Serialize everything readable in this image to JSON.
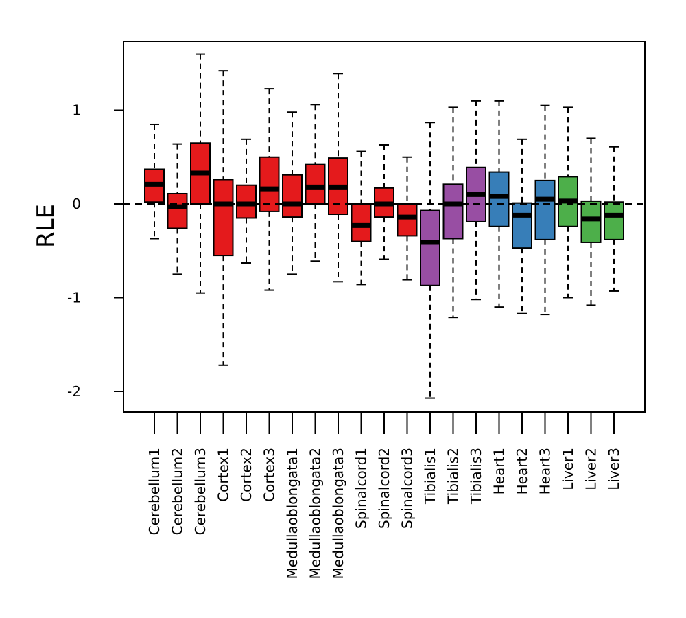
{
  "chart_data": {
    "type": "boxplot",
    "ylabel": "RLE",
    "xlabel": "",
    "ylim": [
      -2.2,
      1.75
    ],
    "yticks": [
      -2,
      -1,
      0,
      1
    ],
    "ytick_labels": [
      "-2",
      "-1",
      "0",
      "1"
    ],
    "reference_line": 0,
    "colors": {
      "Cerebellum": "#e41a1c",
      "Cortex": "#e41a1c",
      "Medullaoblongata": "#e41a1c",
      "Spinalcord": "#e41a1c",
      "Tibialis": "#984ea3",
      "Heart": "#377eb8",
      "Liver": "#4daf4a"
    },
    "boxes": [
      {
        "label": "Cerebellum1",
        "group": "Cerebellum",
        "whisker_low": -0.37,
        "q1": 0.02,
        "median": 0.21,
        "q3": 0.37,
        "whisker_high": 0.85
      },
      {
        "label": "Cerebellum2",
        "group": "Cerebellum",
        "whisker_low": -0.75,
        "q1": -0.26,
        "median": -0.03,
        "q3": 0.11,
        "whisker_high": 0.64
      },
      {
        "label": "Cerebellum3",
        "group": "Cerebellum",
        "whisker_low": -0.95,
        "q1": 0.0,
        "median": 0.33,
        "q3": 0.65,
        "whisker_high": 1.6
      },
      {
        "label": "Cortex1",
        "group": "Cortex",
        "whisker_low": -1.72,
        "q1": -0.55,
        "median": 0.0,
        "q3": 0.26,
        "whisker_high": 1.42
      },
      {
        "label": "Cortex2",
        "group": "Cortex",
        "whisker_low": -0.63,
        "q1": -0.15,
        "median": 0.0,
        "q3": 0.2,
        "whisker_high": 0.69
      },
      {
        "label": "Cortex3",
        "group": "Cortex",
        "whisker_low": -0.92,
        "q1": -0.08,
        "median": 0.16,
        "q3": 0.5,
        "whisker_high": 1.23
      },
      {
        "label": "Medullaoblongata1",
        "group": "Medullaoblongata",
        "whisker_low": -0.75,
        "q1": -0.14,
        "median": 0.0,
        "q3": 0.31,
        "whisker_high": 0.98
      },
      {
        "label": "Medullaoblongata2",
        "group": "Medullaoblongata",
        "whisker_low": -0.61,
        "q1": 0.0,
        "median": 0.18,
        "q3": 0.42,
        "whisker_high": 1.06
      },
      {
        "label": "Medullaoblongata3",
        "group": "Medullaoblongata",
        "whisker_low": -0.83,
        "q1": -0.11,
        "median": 0.18,
        "q3": 0.49,
        "whisker_high": 1.39
      },
      {
        "label": "Spinalcord1",
        "group": "Spinalcord",
        "whisker_low": -0.86,
        "q1": -0.4,
        "median": -0.23,
        "q3": 0.0,
        "whisker_high": 0.56
      },
      {
        "label": "Spinalcord2",
        "group": "Spinalcord",
        "whisker_low": -0.59,
        "q1": -0.14,
        "median": 0.0,
        "q3": 0.17,
        "whisker_high": 0.63
      },
      {
        "label": "Spinalcord3",
        "group": "Spinalcord",
        "whisker_low": -0.81,
        "q1": -0.34,
        "median": -0.14,
        "q3": 0.0,
        "whisker_high": 0.5
      },
      {
        "label": "Tibialis1",
        "group": "Tibialis",
        "whisker_low": -2.07,
        "q1": -0.87,
        "median": -0.41,
        "q3": -0.07,
        "whisker_high": 0.87
      },
      {
        "label": "Tibialis2",
        "group": "Tibialis",
        "whisker_low": -1.21,
        "q1": -0.37,
        "median": 0.0,
        "q3": 0.21,
        "whisker_high": 1.03
      },
      {
        "label": "Tibialis3",
        "group": "Tibialis",
        "whisker_low": -1.02,
        "q1": -0.19,
        "median": 0.1,
        "q3": 0.39,
        "whisker_high": 1.1
      },
      {
        "label": "Heart1",
        "group": "Heart",
        "whisker_low": -1.1,
        "q1": -0.24,
        "median": 0.08,
        "q3": 0.34,
        "whisker_high": 1.1
      },
      {
        "label": "Heart2",
        "group": "Heart",
        "whisker_low": -1.17,
        "q1": -0.47,
        "median": -0.12,
        "q3": 0.01,
        "whisker_high": 0.69
      },
      {
        "label": "Heart3",
        "group": "Heart",
        "whisker_low": -1.18,
        "q1": -0.38,
        "median": 0.05,
        "q3": 0.25,
        "whisker_high": 1.05
      },
      {
        "label": "Liver1",
        "group": "Liver",
        "whisker_low": -1.0,
        "q1": -0.24,
        "median": 0.03,
        "q3": 0.29,
        "whisker_high": 1.03
      },
      {
        "label": "Liver2",
        "group": "Liver",
        "whisker_low": -1.08,
        "q1": -0.41,
        "median": -0.16,
        "q3": 0.03,
        "whisker_high": 0.7
      },
      {
        "label": "Liver3",
        "group": "Liver",
        "whisker_low": -0.93,
        "q1": -0.38,
        "median": -0.12,
        "q3": 0.02,
        "whisker_high": 0.61
      }
    ]
  }
}
